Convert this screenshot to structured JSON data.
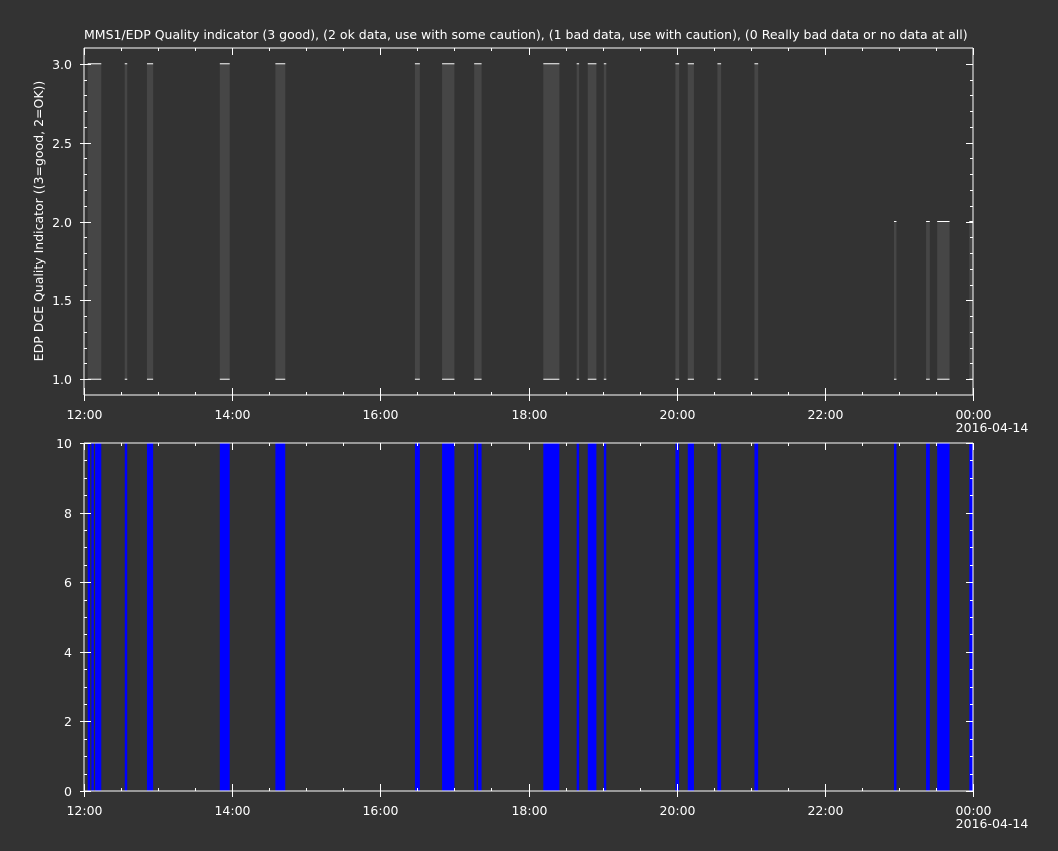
{
  "chart_data": [
    {
      "type": "bar",
      "title": "MMS1/EDP  Quality indicator (3 good), (2 ok data, use with some caution), (1 bad data, use with caution), (0 Really bad data or no data at all)",
      "ylabel": "EDP DCE Quality Indicator ((3=good, 2=OK))",
      "xlabel": "",
      "ylim": [
        0.9,
        3.1
      ],
      "xlim_hours": [
        12,
        24
      ],
      "yticks": [
        "1.0",
        "1.5",
        "2.0",
        "2.5",
        "3.0"
      ],
      "xticks": [
        "12:00",
        "14:00",
        "16:00",
        "18:00",
        "20:00",
        "22:00",
        "00:00"
      ],
      "date_label": "2016-04-14",
      "bar_color": "#464646",
      "series": [
        {
          "values": [
            {
              "t0": "12:03",
              "t1": "12:14",
              "low": 1.0,
              "high": 3.0
            },
            {
              "t0": "12:33",
              "t1": "12:35",
              "low": 1.0,
              "high": 3.0
            },
            {
              "t0": "12:51",
              "t1": "12:56",
              "low": 1.0,
              "high": 3.0
            },
            {
              "t0": "13:50",
              "t1": "13:58",
              "low": 1.0,
              "high": 3.0
            },
            {
              "t0": "14:35",
              "t1": "14:43",
              "low": 1.0,
              "high": 3.0
            },
            {
              "t0": "16:28",
              "t1": "16:32",
              "low": 1.0,
              "high": 3.0
            },
            {
              "t0": "16:50",
              "t1": "17:00",
              "low": 1.0,
              "high": 3.0
            },
            {
              "t0": "17:16",
              "t1": "17:22",
              "low": 1.0,
              "high": 3.0
            },
            {
              "t0": "18:12",
              "t1": "18:25",
              "low": 1.0,
              "high": 3.0
            },
            {
              "t0": "18:39",
              "t1": "18:41",
              "low": 1.0,
              "high": 3.0
            },
            {
              "t0": "18:48",
              "t1": "18:55",
              "low": 1.0,
              "high": 3.0
            },
            {
              "t0": "19:01",
              "t1": "19:03",
              "low": 1.0,
              "high": 3.0
            },
            {
              "t0": "19:59",
              "t1": "20:02",
              "low": 1.0,
              "high": 3.0
            },
            {
              "t0": "20:09",
              "t1": "20:14",
              "low": 1.0,
              "high": 3.0
            },
            {
              "t0": "20:33",
              "t1": "20:36",
              "low": 1.0,
              "high": 3.0
            },
            {
              "t0": "21:03",
              "t1": "21:06",
              "low": 1.0,
              "high": 3.0
            },
            {
              "t0": "22:56",
              "t1": "22:58",
              "low": 1.0,
              "high": 2.0
            },
            {
              "t0": "23:22",
              "t1": "23:25",
              "low": 1.0,
              "high": 2.0
            },
            {
              "t0": "23:31",
              "t1": "23:41",
              "low": 1.0,
              "high": 2.0
            },
            {
              "t0": "23:57",
              "t1": "00:00",
              "low": 1.0,
              "high": 2.0
            }
          ]
        }
      ]
    },
    {
      "type": "bar",
      "title": "",
      "ylabel": "",
      "xlabel": "",
      "ylim": [
        0,
        10
      ],
      "xlim_hours": [
        12,
        24
      ],
      "yticks": [
        "0",
        "2",
        "4",
        "6",
        "8",
        "10"
      ],
      "xticks": [
        "12:00",
        "14:00",
        "16:00",
        "18:00",
        "20:00",
        "22:00",
        "00:00"
      ],
      "date_label": "2016-04-14",
      "bar_color": "#0000ff",
      "series": [
        {
          "values": [
            {
              "t0": "12:03",
              "t1": "12:05",
              "value": 10
            },
            {
              "t0": "12:06",
              "t1": "12:08",
              "value": 10
            },
            {
              "t0": "12:09",
              "t1": "12:14",
              "value": 10
            },
            {
              "t0": "12:33",
              "t1": "12:35",
              "value": 10
            },
            {
              "t0": "12:51",
              "t1": "12:56",
              "value": 10
            },
            {
              "t0": "13:50",
              "t1": "13:58",
              "value": 10
            },
            {
              "t0": "14:35",
              "t1": "14:43",
              "value": 10
            },
            {
              "t0": "16:28",
              "t1": "16:32",
              "value": 10
            },
            {
              "t0": "16:50",
              "t1": "17:00",
              "value": 10
            },
            {
              "t0": "17:16",
              "t1": "17:18",
              "value": 10
            },
            {
              "t0": "17:19",
              "t1": "17:22",
              "value": 10
            },
            {
              "t0": "18:12",
              "t1": "18:25",
              "value": 10
            },
            {
              "t0": "18:39",
              "t1": "18:41",
              "value": 10
            },
            {
              "t0": "18:48",
              "t1": "18:55",
              "value": 10
            },
            {
              "t0": "19:01",
              "t1": "19:03",
              "value": 10
            },
            {
              "t0": "19:59",
              "t1": "20:02",
              "value": 10
            },
            {
              "t0": "20:09",
              "t1": "20:14",
              "value": 10
            },
            {
              "t0": "20:33",
              "t1": "20:36",
              "value": 10
            },
            {
              "t0": "21:03",
              "t1": "21:06",
              "value": 10
            },
            {
              "t0": "22:56",
              "t1": "22:58",
              "value": 10
            },
            {
              "t0": "23:22",
              "t1": "23:25",
              "value": 10
            },
            {
              "t0": "23:31",
              "t1": "23:41",
              "value": 10
            },
            {
              "t0": "23:57",
              "t1": "00:00",
              "value": 10
            }
          ]
        }
      ]
    }
  ]
}
